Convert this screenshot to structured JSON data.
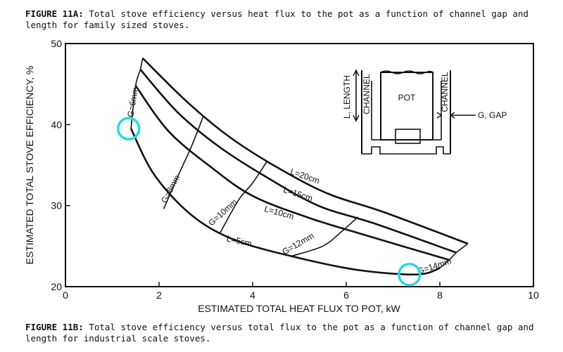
{
  "caption_top": {
    "label": "FIGURE 11A:",
    "text": " Total stove efficiency versus heat flux to the pot as a function of channel gap and length for family sized stoves."
  },
  "caption_bottom": {
    "label": "FIGURE 11B:",
    "text": " Total stove efficiency versus total flux to the pot as a function of channel gap and length for industrial scale stoves."
  },
  "chart_data": {
    "type": "line",
    "xlabel": "ESTIMATED TOTAL HEAT FLUX TO POT, kW",
    "ylabel": "ESTIMATED TOTAL STOVE EFFICIENCY, %",
    "xlim": [
      0,
      10
    ],
    "ylim": [
      20,
      50
    ],
    "x_ticks": [
      0,
      2,
      4,
      6,
      8,
      10
    ],
    "y_ticks": [
      20,
      30,
      40,
      50
    ],
    "length_series": [
      {
        "name": "L=20cm",
        "points": [
          [
            1.65,
            48.2
          ],
          [
            2.6,
            42.8
          ],
          [
            3.5,
            38.5
          ],
          [
            4.5,
            34.8
          ],
          [
            5.6,
            31.5
          ],
          [
            6.8,
            29.2
          ],
          [
            8.6,
            25.3
          ]
        ]
      },
      {
        "name": "L=15cm",
        "points": [
          [
            1.6,
            46.8
          ],
          [
            2.4,
            41.5
          ],
          [
            3.3,
            37.2
          ],
          [
            4.3,
            33.5
          ],
          [
            5.4,
            30.0
          ],
          [
            6.6,
            27.8
          ],
          [
            8.35,
            24.2
          ]
        ]
      },
      {
        "name": "L=10cm",
        "points": [
          [
            1.5,
            44.8
          ],
          [
            2.2,
            39.2
          ],
          [
            3.1,
            34.8
          ],
          [
            4.0,
            31.2
          ],
          [
            5.2,
            28.5
          ],
          [
            6.5,
            26.2
          ],
          [
            8.2,
            23.3
          ]
        ]
      },
      {
        "name": "L=5cm",
        "points": [
          [
            1.4,
            39.5
          ],
          [
            1.9,
            33.8
          ],
          [
            2.7,
            28.8
          ],
          [
            3.6,
            25.8
          ],
          [
            4.8,
            23.8
          ],
          [
            6.2,
            22.1
          ],
          [
            7.5,
            21.5
          ],
          [
            8.0,
            22.3
          ]
        ]
      }
    ],
    "gap_series": [
      {
        "name": "G=6mm",
        "points": [
          [
            1.65,
            48.2
          ],
          [
            1.6,
            46.8
          ],
          [
            1.5,
            44.8
          ],
          [
            1.4,
            39.5
          ]
        ]
      },
      {
        "name": "G=8mm",
        "points": [
          [
            2.95,
            41.1
          ],
          [
            2.7,
            37.4
          ],
          [
            2.4,
            33.6
          ],
          [
            2.1,
            29.6
          ]
        ]
      },
      {
        "name": "G=10mm",
        "points": [
          [
            4.3,
            35.4
          ],
          [
            4.0,
            32.8
          ],
          [
            3.7,
            30.7
          ],
          [
            3.3,
            26.6
          ]
        ]
      },
      {
        "name": "G=12mm",
        "points": [
          [
            6.25,
            28.6
          ],
          [
            5.9,
            26.8
          ],
          [
            5.5,
            25.0
          ],
          [
            4.85,
            23.8
          ]
        ]
      },
      {
        "name": "G=14mm",
        "points": [
          [
            8.6,
            25.3
          ],
          [
            8.35,
            24.2
          ],
          [
            8.2,
            23.3
          ],
          [
            8.0,
            22.3
          ]
        ]
      }
    ],
    "highlights": [
      {
        "x": 1.35,
        "y": 39.5
      },
      {
        "x": 7.35,
        "y": 21.5
      }
    ],
    "inset": {
      "pot": "POT",
      "channel_left": "CHANNEL",
      "channel_right": "CHANNEL",
      "length": "L, LENGTH",
      "gap": "G, GAP"
    },
    "highlight_color": "#25d9e3"
  }
}
